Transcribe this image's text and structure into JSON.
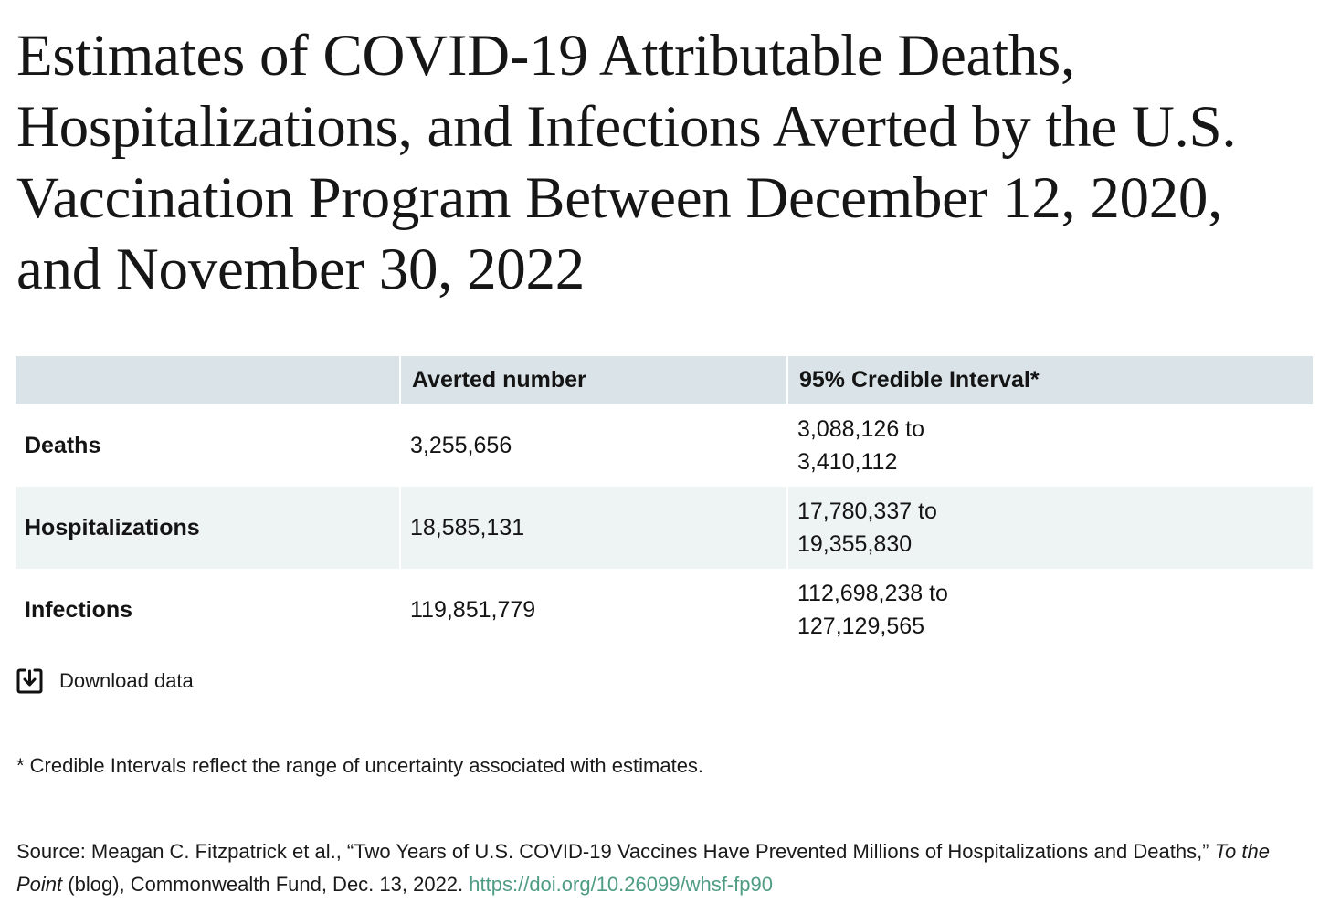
{
  "title": "Estimates of COVID-19 Attributable Deaths, Hospitalizations, and Infections Averted by the U.S. Vaccination Program Between December 12, 2020, and November 30, 2022",
  "table": {
    "headers": [
      "",
      "Averted number",
      "95% Credible Interval*"
    ],
    "rows": [
      {
        "label": "Deaths",
        "value": "3,255,656",
        "ci_low": "3,088,126 to",
        "ci_high": "3,410,112"
      },
      {
        "label": "Hospitalizations",
        "value": "18,585,131",
        "ci_low": "17,780,337 to",
        "ci_high": "19,355,830"
      },
      {
        "label": "Infections",
        "value": "119,851,779",
        "ci_low": "112,698,238 to",
        "ci_high": "127,129,565"
      }
    ]
  },
  "download": {
    "label": "Download data",
    "icon": "download-icon"
  },
  "footnote": "* Credible Intervals reflect the range of uncertainty associated with estimates.",
  "source": {
    "prefix": "Source: Meagan C. Fitzpatrick et al., “Two Years of U.S. COVID-19 Vaccines Have Prevented Millions of Hospitalizations and Deaths,” ",
    "publication": "To the Point",
    "suffix": " (blog), Commonwealth Fund, Dec. 13, 2022. ",
    "link": "https://doi.org/10.26099/whsf-fp90"
  },
  "colors": {
    "header_bg": "#dae3e7",
    "alt_row_bg": "#eef3f4",
    "link": "#4f9c84"
  },
  "chart_data": {
    "type": "table",
    "title": "Estimates of COVID-19 Attributable Deaths, Hospitalizations, and Infections Averted by the U.S. Vaccination Program Between December 12, 2020, and November 30, 2022",
    "columns": [
      "",
      "Averted number",
      "95% Credible Interval*"
    ],
    "rows": [
      [
        "Deaths",
        3255656,
        [
          3088126,
          3410112
        ]
      ],
      [
        "Hospitalizations",
        18585131,
        [
          17780337,
          19355830
        ]
      ],
      [
        "Infections",
        119851779,
        [
          112698238,
          127129565
        ]
      ]
    ]
  }
}
